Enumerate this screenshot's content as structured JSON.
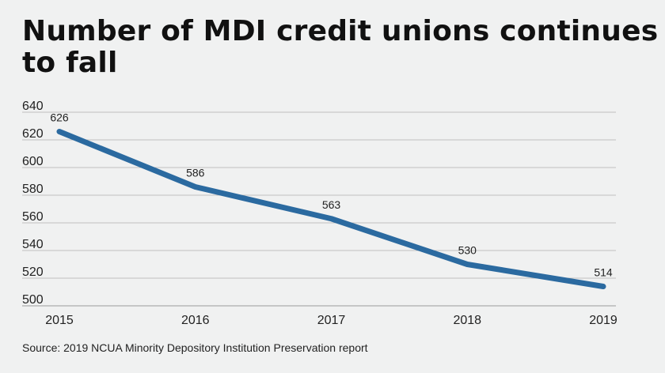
{
  "title": "Number of MDI credit unions continues to fall",
  "source": "Source: 2019 NCUA Minority Depository Institution Preservation report",
  "colors": {
    "line": "#2b6aa0",
    "grid": "#bfbfbf",
    "text": "#222222",
    "background": "#f0f1f1"
  },
  "chart_data": {
    "type": "line",
    "title": "Number of MDI credit unions continues to fall",
    "xlabel": "",
    "ylabel": "",
    "x": [
      "2015",
      "2016",
      "2017",
      "2018",
      "2019"
    ],
    "series": [
      {
        "values": [
          626,
          586,
          563,
          530,
          514
        ],
        "data_labels": [
          "626",
          "586",
          "563",
          "530",
          "514"
        ]
      }
    ],
    "ylim": [
      500,
      640
    ],
    "yticks": [
      500,
      520,
      540,
      560,
      580,
      600,
      620,
      640
    ],
    "grid": true,
    "legend": "none"
  }
}
